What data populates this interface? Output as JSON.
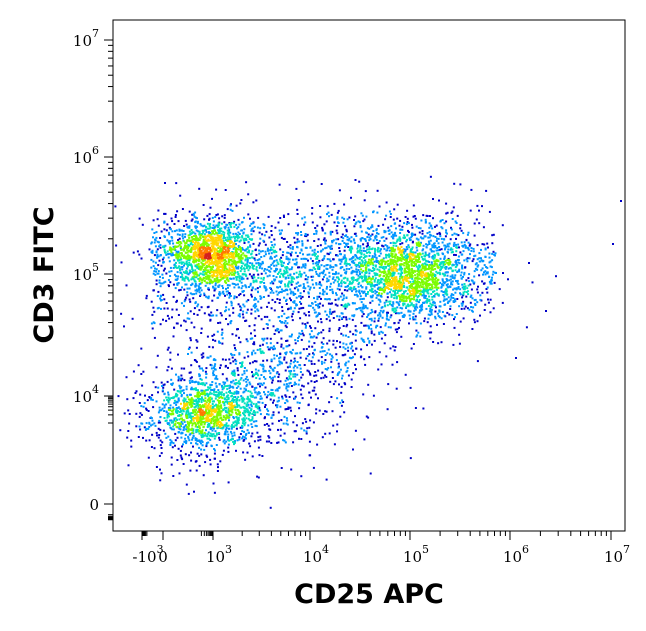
{
  "chart_data": {
    "type": "scatter",
    "subtype": "flow-cytometry density dot plot",
    "xlabel": "CD25 APC",
    "ylabel": "CD3 FITC",
    "x_scale": "biexponential (logicle)",
    "y_scale": "biexponential (logicle)",
    "xlim": [
      -1000,
      10000000
    ],
    "ylim": [
      -1000,
      10000000
    ],
    "x_ticks": [
      {
        "value": -1000,
        "base": "-10",
        "exp": "3"
      },
      {
        "value": 0,
        "base": "0",
        "exp": ""
      },
      {
        "value": 1000,
        "base": "10",
        "exp": "3"
      },
      {
        "value": 10000,
        "base": "10",
        "exp": "4"
      },
      {
        "value": 100000,
        "base": "10",
        "exp": "5"
      },
      {
        "value": 1000000,
        "base": "10",
        "exp": "6"
      },
      {
        "value": 10000000,
        "base": "10",
        "exp": "7"
      }
    ],
    "y_ticks": [
      {
        "value": 0,
        "base": "0",
        "exp": ""
      },
      {
        "value": 10000,
        "base": "10",
        "exp": "4"
      },
      {
        "value": 100000,
        "base": "10",
        "exp": "5"
      },
      {
        "value": 1000000,
        "base": "10",
        "exp": "6"
      },
      {
        "value": 10000000,
        "base": "10",
        "exp": "7"
      }
    ],
    "color_scale": [
      "#0000c8",
      "#0096ff",
      "#00e0c0",
      "#7cfc00",
      "#ffd700",
      "#ff7800",
      "#d42020"
    ],
    "populations": [
      {
        "x_center": 600,
        "y_center": 150000,
        "density": "high"
      },
      {
        "x_center": 100000,
        "y_center": 100000,
        "density": "high"
      },
      {
        "x_center": 300,
        "y_center": 3000,
        "density": "high"
      },
      {
        "x_center": 10000,
        "y_center": 120000,
        "density": "low"
      },
      {
        "x_center": 3000,
        "y_center": 15000,
        "density": "low"
      }
    ],
    "grid": false,
    "legend": "none"
  }
}
